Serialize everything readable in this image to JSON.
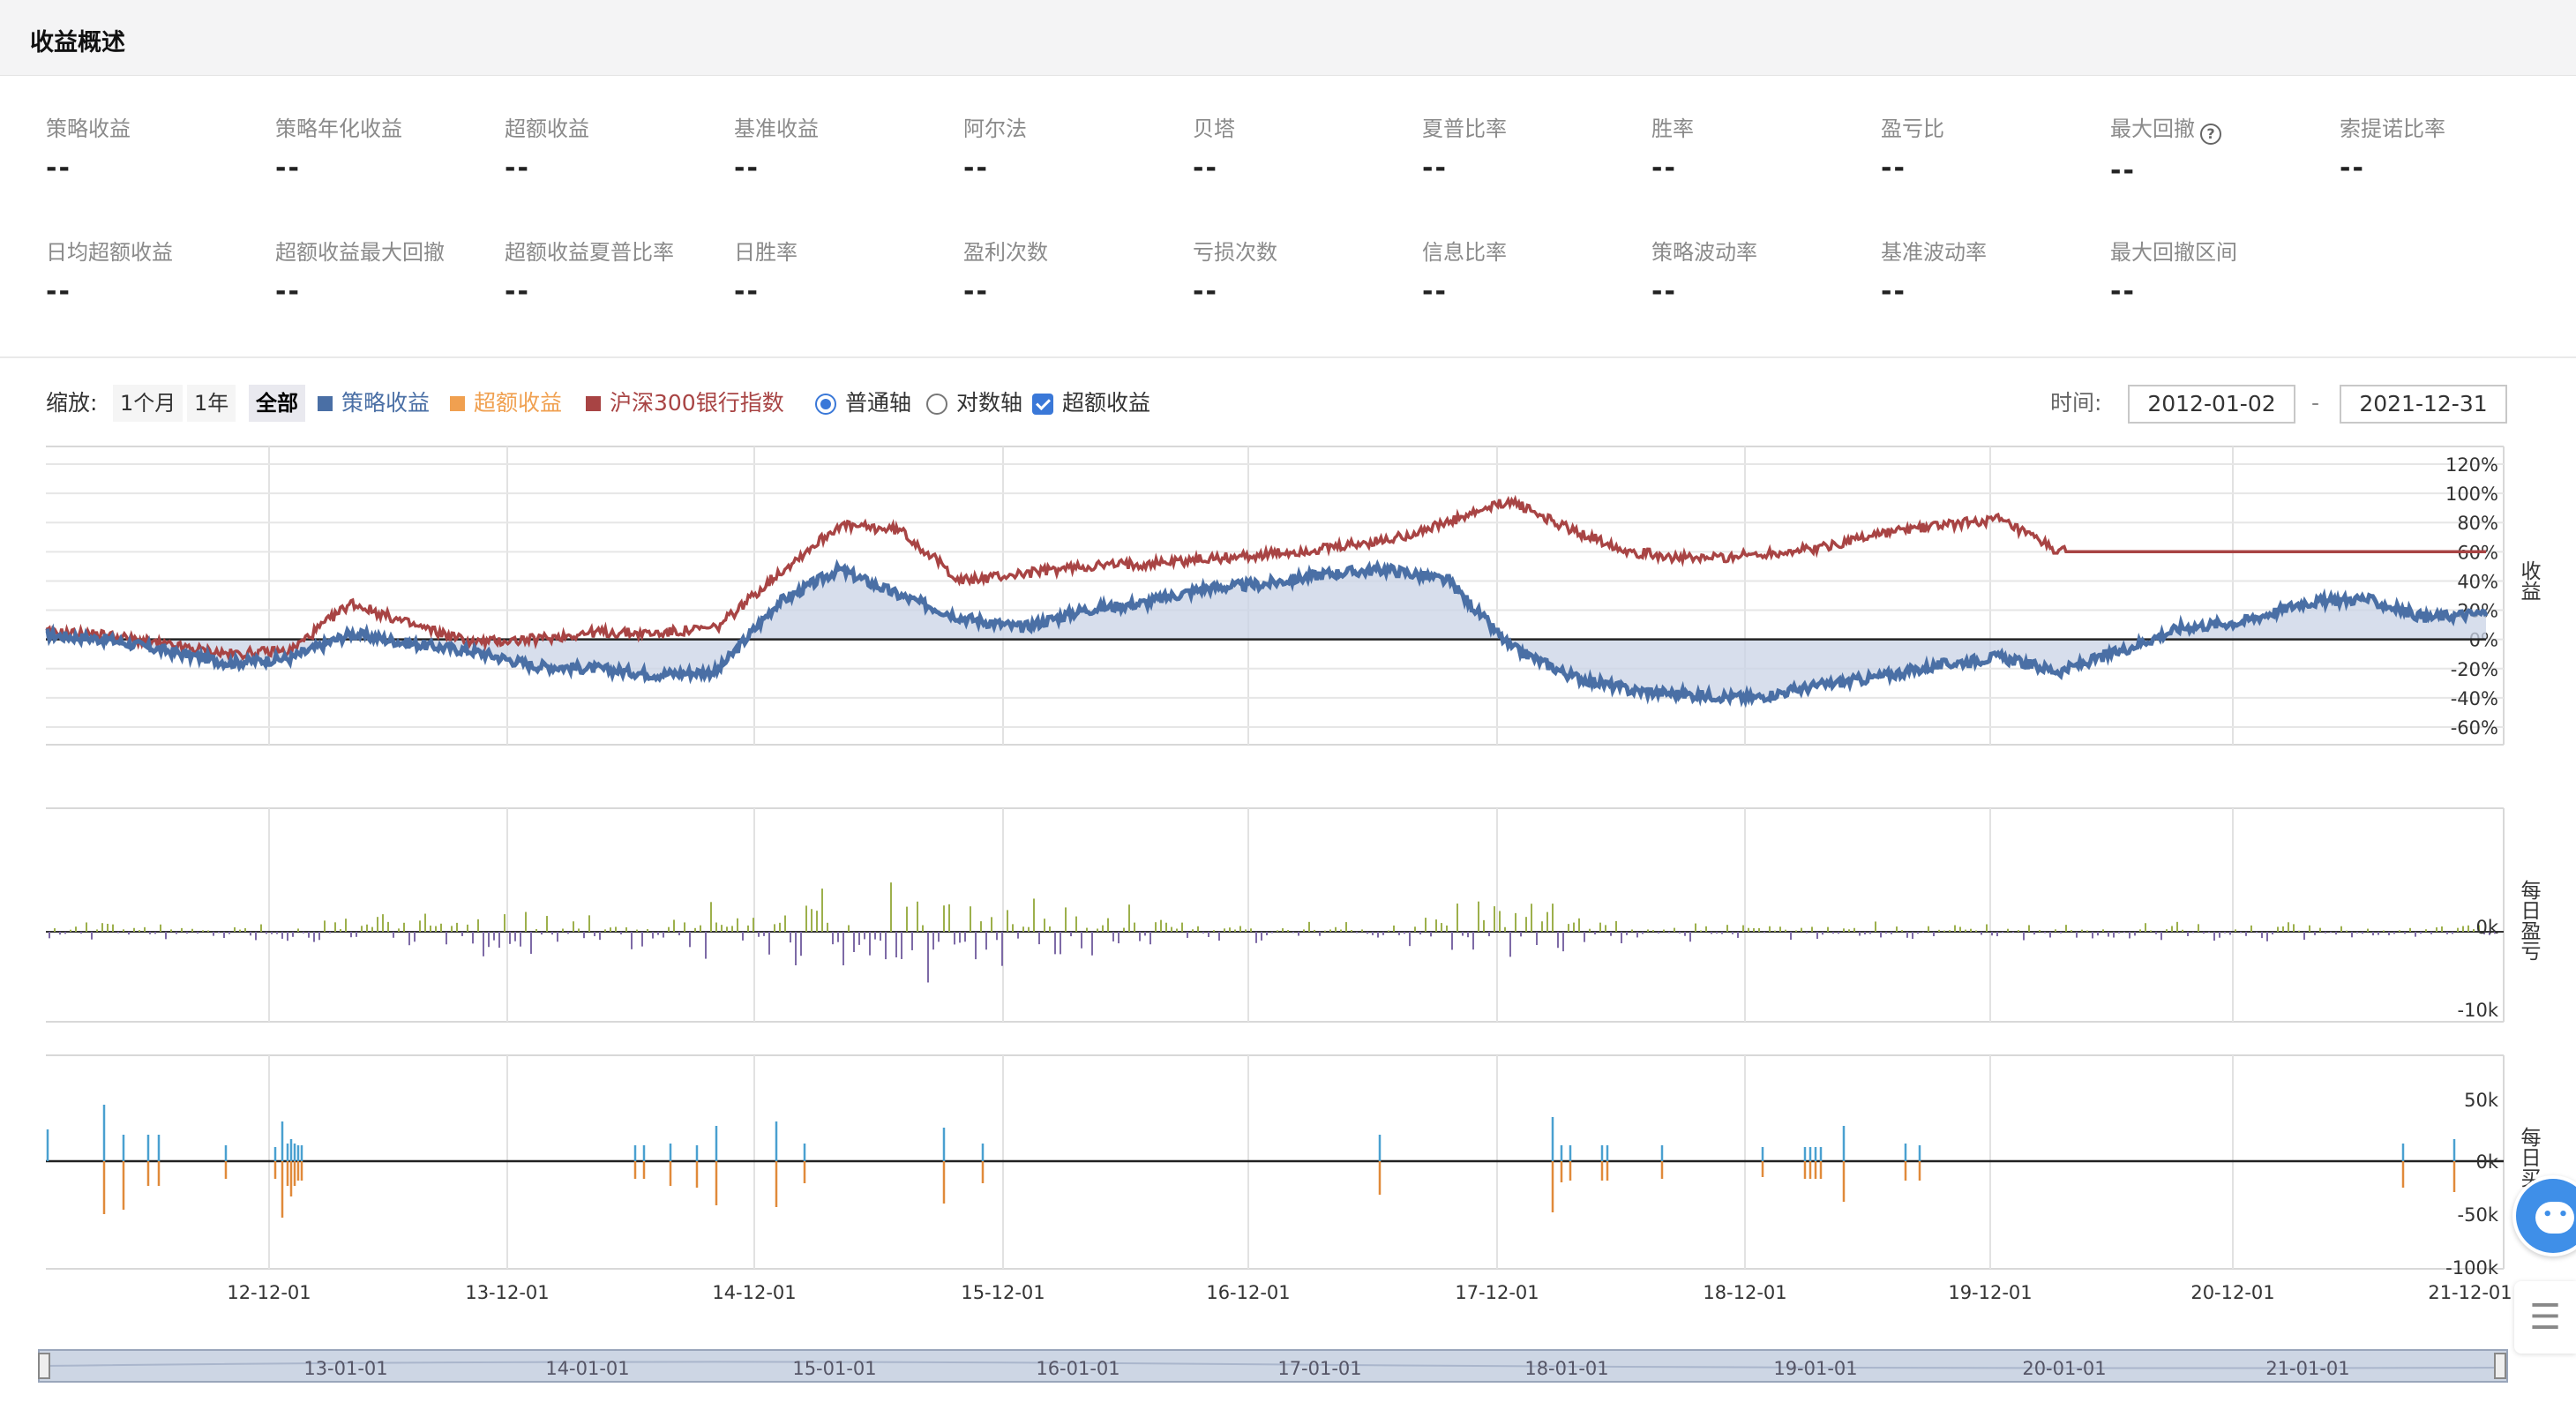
{
  "header": {
    "title": "收益概述"
  },
  "metrics": [
    {
      "label": "策略收益",
      "value": "--"
    },
    {
      "label": "策略年化收益",
      "value": "--"
    },
    {
      "label": "超额收益",
      "value": "--"
    },
    {
      "label": "基准收益",
      "value": "--"
    },
    {
      "label": "阿尔法",
      "value": "--"
    },
    {
      "label": "贝塔",
      "value": "--"
    },
    {
      "label": "夏普比率",
      "value": "--"
    },
    {
      "label": "胜率",
      "value": "--"
    },
    {
      "label": "盈亏比",
      "value": "--"
    },
    {
      "label": "最大回撤",
      "value": "--",
      "help": "?"
    },
    {
      "label": "索提诺比率",
      "value": "--"
    },
    {
      "label": "日均超额收益",
      "value": "--"
    },
    {
      "label": "超额收益最大回撤",
      "value": "--"
    },
    {
      "label": "超额收益夏普比率",
      "value": "--"
    },
    {
      "label": "日胜率",
      "value": "--"
    },
    {
      "label": "盈利次数",
      "value": "--"
    },
    {
      "label": "亏损次数",
      "value": "--"
    },
    {
      "label": "信息比率",
      "value": "--"
    },
    {
      "label": "策略波动率",
      "value": "--"
    },
    {
      "label": "基准波动率",
      "value": "--"
    },
    {
      "label": "最大回撤区间",
      "value": "--"
    }
  ],
  "toolbar": {
    "zoom_label": "缩放:",
    "zoom_options": [
      "1个月",
      "1年",
      "全部"
    ],
    "zoom_active": "全部",
    "legend": [
      {
        "label": "策略收益",
        "color": "#4a6fa5"
      },
      {
        "label": "超额收益",
        "color": "#f0a050"
      },
      {
        "label": "沪深300银行指数",
        "color": "#a84444"
      }
    ],
    "axis_normal": "普通轴",
    "axis_log": "对数轴",
    "excess_checkbox": "超额收益",
    "time_label": "时间:",
    "date_start": "2012-01-02",
    "date_sep": "-",
    "date_end": "2021-12-31"
  },
  "colors": {
    "strategy": "#4a6fa5",
    "benchmark": "#a84444",
    "excess_fill": "#c9d3e6",
    "profit": "#9db04c",
    "loss": "#7d6aa6",
    "buy": "#4aa0d0",
    "sell": "#e08a3a"
  },
  "chart_data": [
    {
      "type": "line",
      "panel": "收益",
      "ylabel": "收益",
      "ylim": [
        -60,
        120
      ],
      "yticks": [
        "120%",
        "100%",
        "80%",
        "60%",
        "40%",
        "20%",
        "0%",
        "-20%",
        "-40%",
        "-60%"
      ],
      "x": [
        "2011-12",
        "2012-03",
        "2012-06",
        "2012-09",
        "2012-12",
        "2013-03",
        "2013-06",
        "2013-09",
        "2013-12",
        "2014-03",
        "2014-06",
        "2014-09",
        "2014-12",
        "2015-03",
        "2015-06",
        "2015-09",
        "2015-12",
        "2016-03",
        "2016-06",
        "2016-09",
        "2016-12",
        "2017-03",
        "2017-06",
        "2017-09",
        "2017-12",
        "2018-03",
        "2018-06",
        "2018-09",
        "2018-12",
        "2019-03",
        "2019-06",
        "2019-09",
        "2019-12",
        "2020-03",
        "2020-06",
        "2020-09",
        "2020-12",
        "2021-03",
        "2021-06",
        "2021-09",
        "2021-12"
      ],
      "series": [
        {
          "name": "策略收益",
          "values": [
            3,
            0,
            -8,
            -16,
            -13,
            4,
            -3,
            -8,
            -18,
            -20,
            -24,
            -22,
            25,
            48,
            30,
            15,
            8,
            20,
            25,
            35,
            38,
            45,
            48,
            40,
            -5,
            -25,
            -35,
            -38,
            -40,
            -32,
            -26,
            -18,
            -12,
            -22,
            -8,
            8,
            12,
            25,
            28,
            15,
            18
          ]
        },
        {
          "name": "沪深300银行指数",
          "values": [
            5,
            3,
            -4,
            -10,
            -8,
            25,
            10,
            -2,
            0,
            5,
            4,
            8,
            45,
            78,
            75,
            40,
            45,
            50,
            52,
            55,
            58,
            62,
            68,
            80,
            95,
            75,
            60,
            55,
            58,
            62,
            72,
            78,
            82,
            60,
            60,
            60,
            60,
            60,
            60,
            60,
            60
          ]
        }
      ]
    },
    {
      "type": "bar",
      "panel": "每日盈亏",
      "ylabel": "每日盈亏",
      "yticks": [
        "0k",
        "-10k"
      ]
    },
    {
      "type": "bar",
      "panel": "每日买卖",
      "ylabel": "每日买卖",
      "yticks": [
        "50k",
        "0k",
        "-50k",
        "-100k"
      ]
    }
  ],
  "xaxis": {
    "ticks": [
      "12-12-01",
      "13-12-01",
      "14-12-01",
      "15-12-01",
      "16-12-01",
      "17-12-01",
      "18-12-01",
      "19-12-01",
      "20-12-01",
      "21-12-01"
    ]
  },
  "navigator": {
    "ticks": [
      "13-01-01",
      "14-01-01",
      "15-01-01",
      "16-01-01",
      "17-01-01",
      "18-01-01",
      "19-01-01",
      "20-01-01",
      "21-01-01"
    ]
  }
}
